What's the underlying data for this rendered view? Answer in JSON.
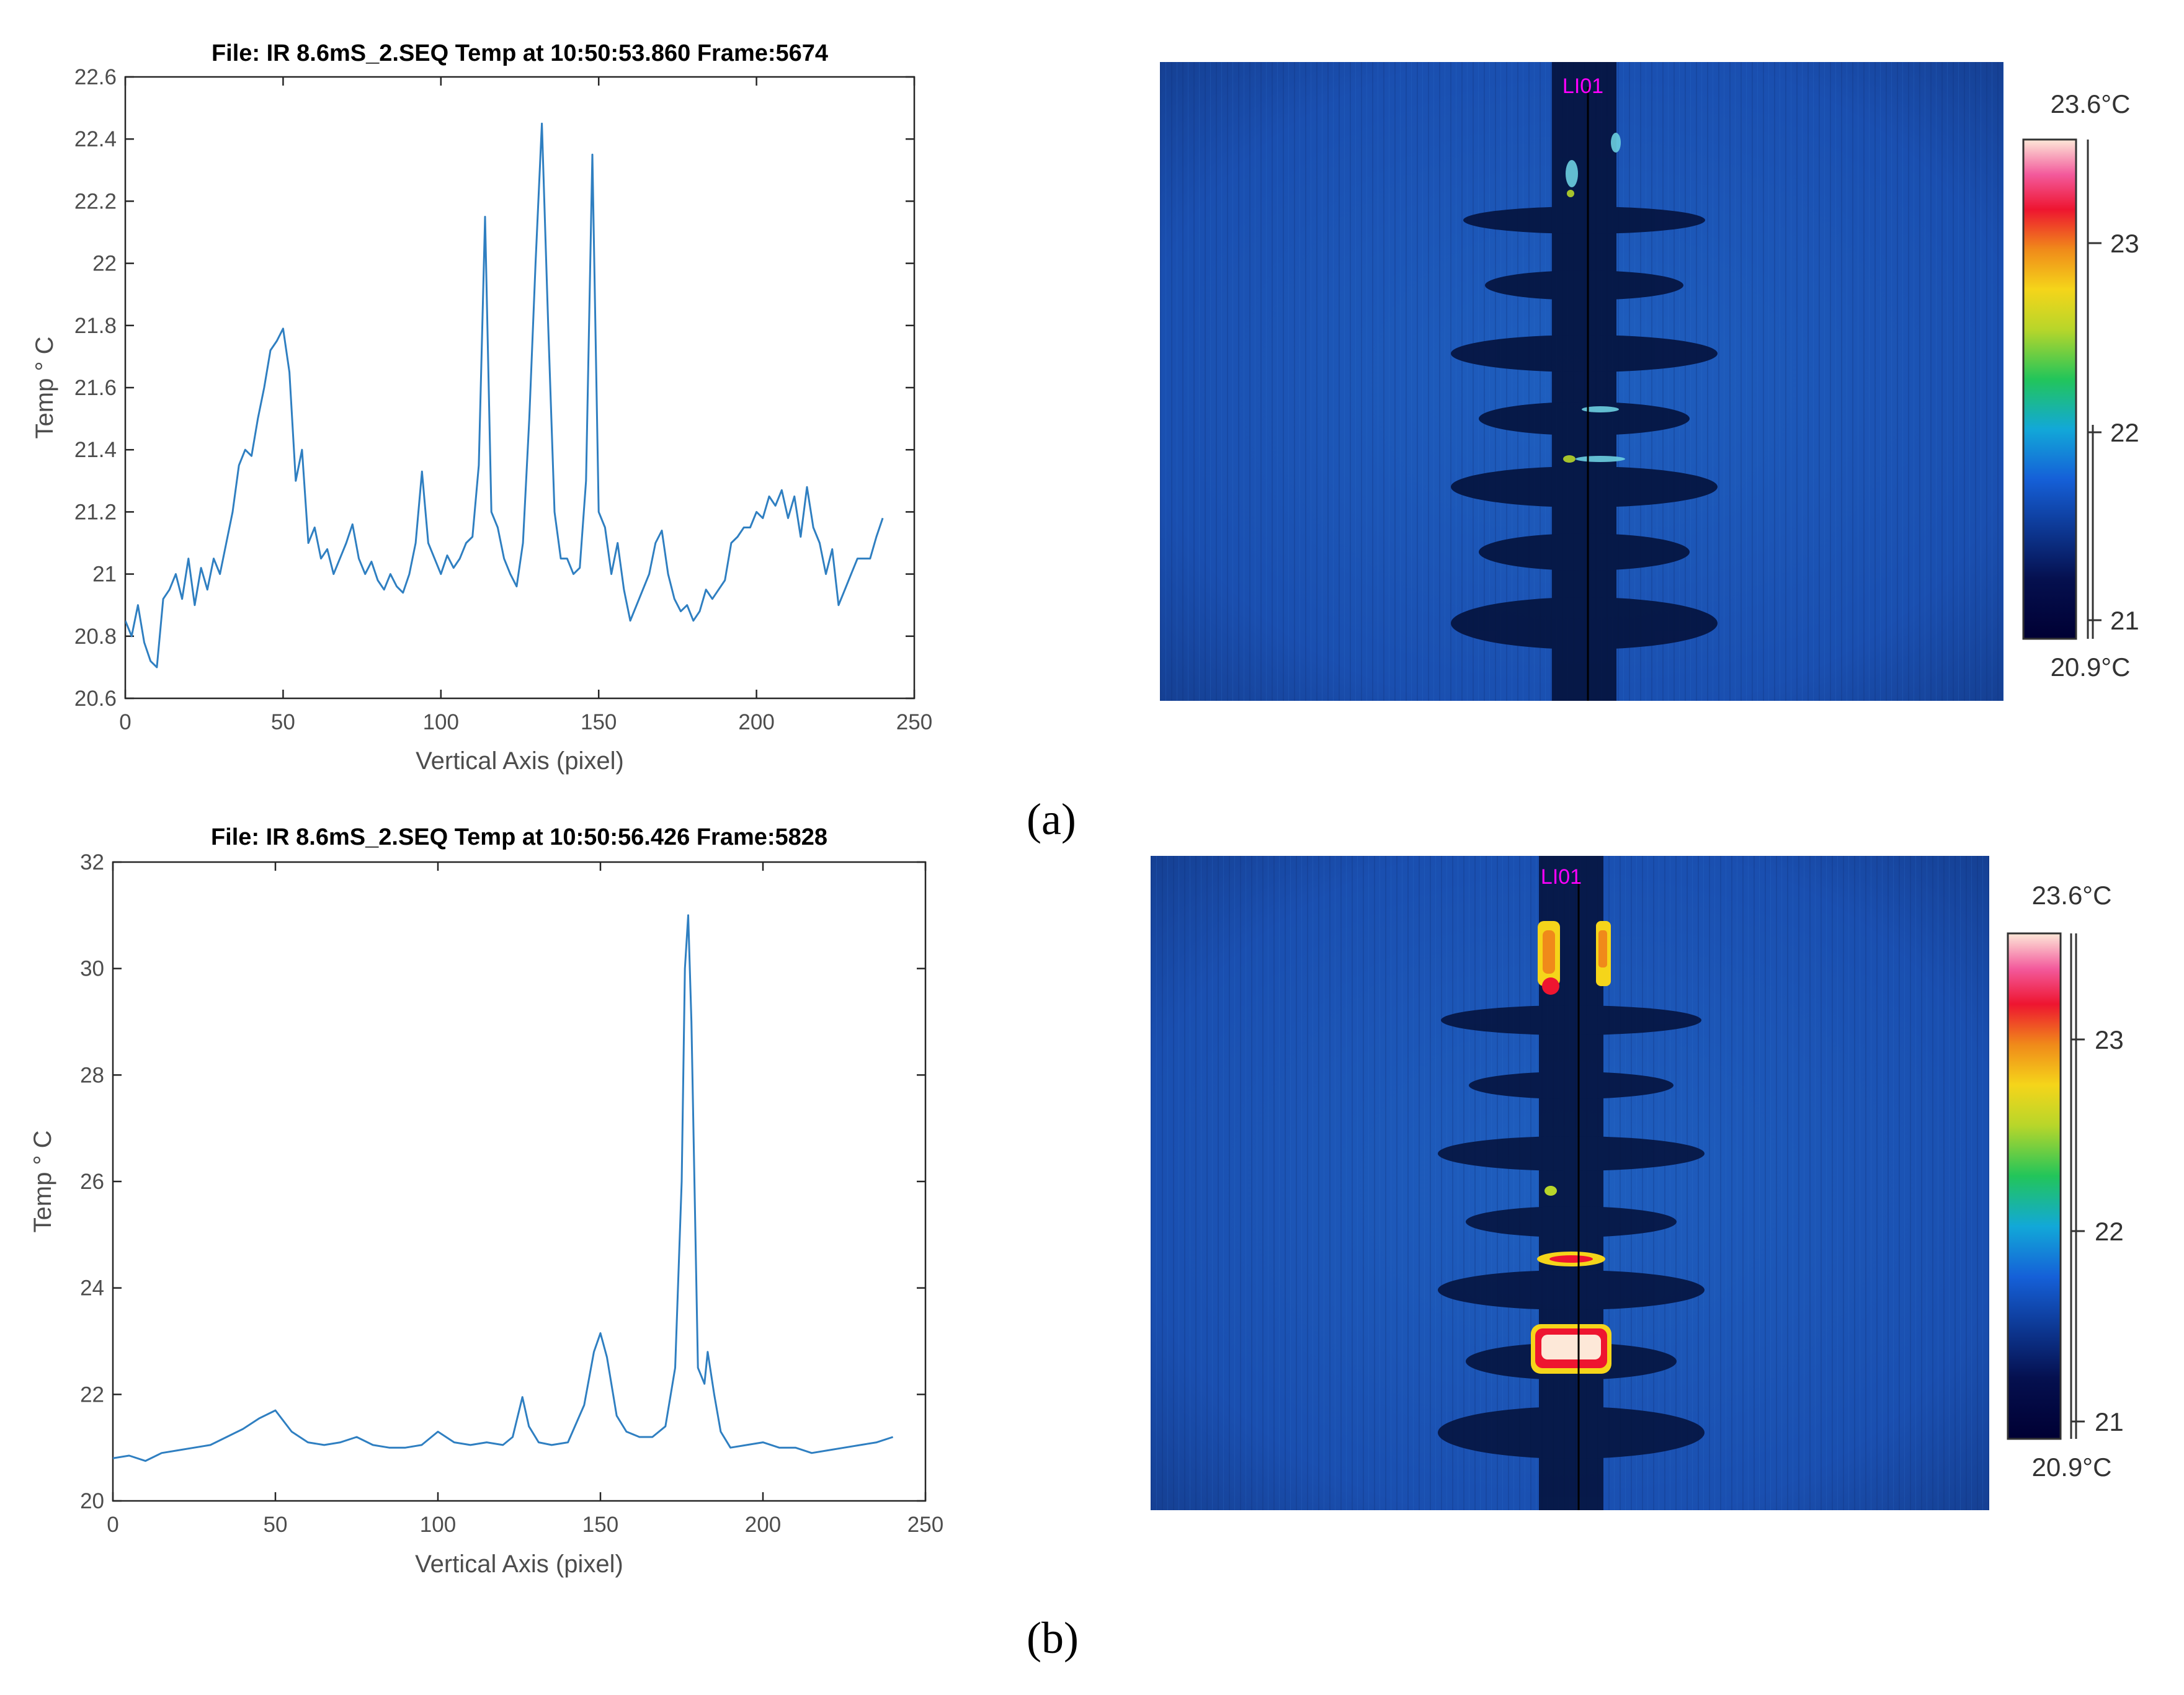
{
  "chart_data": [
    {
      "type": "line",
      "title": "File: IR 8.6mS_2.SEQ Temp at 10:50:53.860 Frame:5674",
      "xlabel": "Vertical Axis (pixel)",
      "ylabel": "Temp ° C",
      "xlim": [
        0,
        250
      ],
      "ylim": [
        20.6,
        22.6
      ],
      "xticks": [
        "0",
        "50",
        "100",
        "150",
        "200",
        "250"
      ],
      "yticks": [
        "20.6",
        "20.8",
        "21",
        "21.2",
        "21.4",
        "21.6",
        "21.8",
        "22",
        "22.2",
        "22.4",
        "22.6"
      ],
      "color": "#2f7fc1",
      "series": [
        {
          "x": [
            0,
            2,
            4,
            6,
            8,
            10,
            12,
            14,
            16,
            18,
            20,
            22,
            24,
            26,
            28,
            30,
            32,
            34,
            36,
            38,
            40,
            42,
            44,
            46,
            48,
            50,
            52,
            54,
            56,
            58,
            60,
            62,
            64,
            66,
            68,
            70,
            72,
            74,
            76,
            78,
            80,
            82,
            84,
            86,
            88,
            90,
            92,
            94,
            96,
            98,
            100,
            102,
            104,
            106,
            108,
            110,
            112,
            114,
            116,
            118,
            120,
            122,
            124,
            126,
            128,
            130,
            132,
            134,
            136,
            138,
            140,
            142,
            144,
            146,
            148,
            150,
            152,
            154,
            156,
            158,
            160,
            162,
            164,
            166,
            168,
            170,
            172,
            174,
            176,
            178,
            180,
            182,
            184,
            186,
            188,
            190,
            192,
            194,
            196,
            198,
            200,
            202,
            204,
            206,
            208,
            210,
            212,
            214,
            216,
            218,
            220,
            222,
            224,
            226,
            228,
            230,
            232,
            234,
            236,
            238,
            240
          ],
          "values": [
            20.85,
            20.8,
            20.9,
            20.78,
            20.72,
            20.7,
            20.92,
            20.95,
            21.0,
            20.92,
            21.05,
            20.9,
            21.02,
            20.95,
            21.05,
            21.0,
            21.1,
            21.2,
            21.35,
            21.4,
            21.38,
            21.5,
            21.6,
            21.72,
            21.75,
            21.79,
            21.65,
            21.3,
            21.4,
            21.1,
            21.15,
            21.05,
            21.08,
            21.0,
            21.05,
            21.1,
            21.16,
            21.05,
            21.0,
            21.04,
            20.98,
            20.95,
            21.0,
            20.96,
            20.94,
            21.0,
            21.1,
            21.33,
            21.1,
            21.05,
            21.0,
            21.06,
            21.02,
            21.05,
            21.1,
            21.12,
            21.35,
            22.15,
            21.2,
            21.15,
            21.05,
            21.0,
            20.96,
            21.1,
            21.5,
            22.0,
            22.45,
            21.8,
            21.2,
            21.05,
            21.05,
            21.0,
            21.02,
            21.3,
            22.35,
            21.2,
            21.15,
            21.0,
            21.1,
            20.95,
            20.85,
            20.9,
            20.95,
            21.0,
            21.1,
            21.14,
            21.0,
            20.92,
            20.88,
            20.9,
            20.85,
            20.88,
            20.95,
            20.92,
            20.95,
            20.98,
            21.1,
            21.12,
            21.15,
            21.15,
            21.2,
            21.18,
            21.25,
            21.22,
            21.27,
            21.18,
            21.25,
            21.12,
            21.28,
            21.15,
            21.1,
            21.0,
            21.08,
            20.9,
            20.95,
            21.0,
            21.05,
            21.05,
            21.05,
            21.12,
            21.18
          ],
          "name": ""
        }
      ]
    },
    {
      "type": "line",
      "title": "File: IR 8.6mS_2.SEQ Temp at 10:50:56.426 Frame:5828",
      "xlabel": "Vertical Axis (pixel)",
      "ylabel": "Temp ° C",
      "xlim": [
        0,
        250
      ],
      "ylim": [
        20,
        32
      ],
      "xticks": [
        "0",
        "50",
        "100",
        "150",
        "200",
        "250"
      ],
      "yticks": [
        "20",
        "22",
        "24",
        "26",
        "28",
        "30",
        "32"
      ],
      "color": "#2f7fc1",
      "series": [
        {
          "x": [
            0,
            5,
            10,
            15,
            20,
            25,
            30,
            35,
            40,
            45,
            50,
            55,
            60,
            65,
            70,
            75,
            80,
            85,
            90,
            95,
            100,
            105,
            110,
            115,
            120,
            123,
            126,
            128,
            131,
            135,
            140,
            145,
            148,
            150,
            152,
            155,
            158,
            162,
            166,
            170,
            173,
            175,
            176,
            177,
            178,
            180,
            182,
            183,
            185,
            187,
            190,
            195,
            200,
            205,
            210,
            215,
            220,
            225,
            230,
            235,
            240
          ],
          "values": [
            20.8,
            20.85,
            20.75,
            20.9,
            20.95,
            21.0,
            21.05,
            21.2,
            21.35,
            21.55,
            21.7,
            21.3,
            21.1,
            21.05,
            21.1,
            21.2,
            21.05,
            21.0,
            21.0,
            21.05,
            21.3,
            21.1,
            21.05,
            21.1,
            21.05,
            21.2,
            21.95,
            21.4,
            21.1,
            21.05,
            21.1,
            21.8,
            22.8,
            23.15,
            22.7,
            21.6,
            21.3,
            21.2,
            21.2,
            21.4,
            22.5,
            26.0,
            30.0,
            31.0,
            29.0,
            22.5,
            22.2,
            22.8,
            22.0,
            21.3,
            21.0,
            21.05,
            21.1,
            21.0,
            21.0,
            20.9,
            20.95,
            21.0,
            21.05,
            21.1,
            21.2
          ],
          "name": ""
        }
      ]
    }
  ],
  "thermal_images": [
    {
      "roi_label": "LI01",
      "colorbar_max": "23.6°C",
      "colorbar_min": "20.9°C",
      "colorbar_ticks": [
        "23",
        "22",
        "21"
      ],
      "hotspot_level": 0.25
    },
    {
      "roi_label": "LI01",
      "colorbar_max": "23.6°C",
      "colorbar_min": "20.9°C",
      "colorbar_ticks": [
        "23",
        "22",
        "21"
      ],
      "hotspot_level": 1.0
    }
  ],
  "panel_labels": [
    "(a)",
    "(b)"
  ]
}
